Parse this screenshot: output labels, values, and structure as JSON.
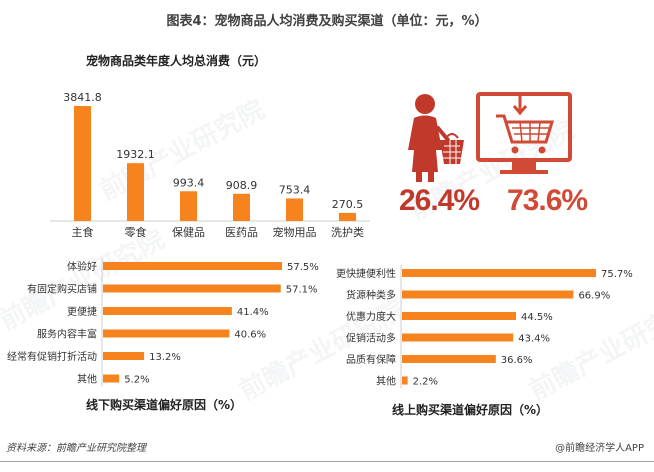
{
  "title": "图表4：宠物商品人均消费及购买渠道（单位：元，%）",
  "watermark": "前瞻产业研究院",
  "source": "资料来源：前瞻产业研究院整理",
  "brand": "@前瞻经济学人APP",
  "colors": {
    "bar": "#f7831f",
    "offline_red": "#c0392b",
    "online_red": "#d04a35",
    "axis": "#cfcfcf"
  },
  "icons": {
    "offline": "woman-with-basket-icon",
    "online": "monitor-shopping-cart-icon"
  },
  "channel_share": {
    "offline": "26.4%",
    "online": "73.6%"
  },
  "chart_data": [
    {
      "type": "bar",
      "title": "宠物商品类年度人均总消费（元）",
      "categories": [
        "主食",
        "零食",
        "保健品",
        "医药品",
        "宠物用品",
        "洗护类"
      ],
      "values": [
        3841.8,
        1932.1,
        993.4,
        908.9,
        753.4,
        270.5
      ],
      "value_labels": [
        "3841.8",
        "1932.1",
        "993.4",
        "908.9",
        "753.4",
        "270.5"
      ],
      "ylim": [
        0,
        3841.8
      ],
      "grid": false
    },
    {
      "type": "bar",
      "orientation": "horizontal",
      "title": "线下购买渠道偏好原因（%）",
      "categories": [
        "体验好",
        "有固定购买店铺",
        "更便捷",
        "服务内容丰富",
        "经常有促销打折活动",
        "其他"
      ],
      "values": [
        57.5,
        57.1,
        41.4,
        40.6,
        13.2,
        5.2
      ],
      "value_labels": [
        "57.5%",
        "57.1%",
        "41.4%",
        "40.6%",
        "13.2%",
        "5.2%"
      ],
      "xlim": [
        0,
        57.5
      ],
      "grid": false
    },
    {
      "type": "bar",
      "orientation": "horizontal",
      "title": "线上购买渠道偏好原因（%）",
      "categories": [
        "更快捷便利性",
        "货源种类多",
        "优惠力度大",
        "促销活动多",
        "品质有保障",
        "其他"
      ],
      "values": [
        75.7,
        66.9,
        44.5,
        43.4,
        36.6,
        2.2
      ],
      "value_labels": [
        "75.7%",
        "66.9%",
        "44.5%",
        "43.4%",
        "36.6%",
        "2.2%"
      ],
      "xlim": [
        0,
        75.7
      ],
      "grid": false
    }
  ]
}
